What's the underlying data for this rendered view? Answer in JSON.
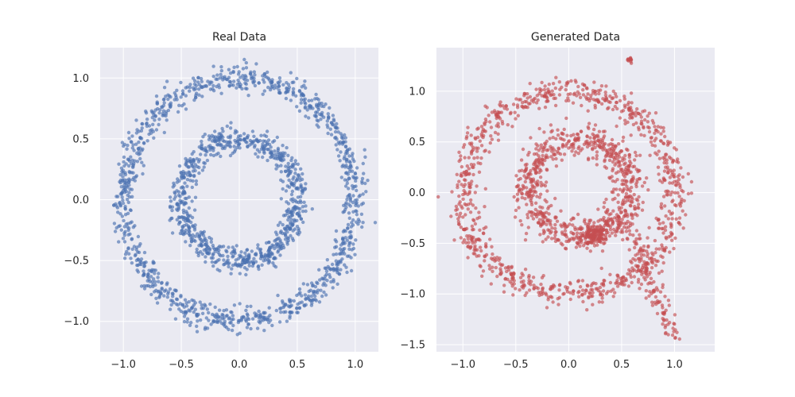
{
  "chart_data": [
    {
      "type": "scatter",
      "title": "Real Data",
      "xlabel": "",
      "ylabel": "",
      "xlim": [
        -1.2,
        1.2
      ],
      "ylim": [
        -1.25,
        1.25
      ],
      "xticks": [
        -1.0,
        -0.5,
        0.0,
        0.5,
        1.0
      ],
      "xtick_labels": [
        "−1.0",
        "−0.5",
        "0.0",
        "0.5",
        "1.0"
      ],
      "yticks": [
        -1.0,
        -0.5,
        0.0,
        0.5,
        1.0
      ],
      "ytick_labels": [
        "−1.0",
        "−0.5",
        "0.0",
        "0.5",
        "1.0"
      ],
      "grid": true,
      "color": "#4c72b0",
      "rings": [
        {
          "center": [
            0.0,
            0.0
          ],
          "radius": 1.0,
          "spread": 0.05
        },
        {
          "center": [
            0.0,
            0.0
          ],
          "radius": 0.5,
          "spread": 0.05
        }
      ]
    },
    {
      "type": "scatter",
      "title": "Generated Data",
      "xlabel": "",
      "ylabel": "",
      "xlim": [
        -1.25,
        1.38
      ],
      "ylim": [
        -1.57,
        1.43
      ],
      "xticks": [
        -1.0,
        -0.5,
        0.0,
        0.5,
        1.0
      ],
      "xtick_labels": [
        "−1.0",
        "−0.5",
        "0.0",
        "0.5",
        "1.0"
      ],
      "yticks": [
        -1.5,
        -1.0,
        -0.5,
        0.0,
        0.5,
        1.0
      ],
      "ytick_labels": [
        "−1.5",
        "−1.0",
        "−0.5",
        "0.0",
        "0.5",
        "1.0"
      ],
      "grid": true,
      "color": "#c44e52",
      "clusters": [
        {
          "shape": "ring",
          "center": [
            0.0,
            0.0
          ],
          "radius": 1.0,
          "spread": 0.07
        },
        {
          "shape": "ring",
          "center": [
            0.1,
            0.05
          ],
          "radius": 0.48,
          "spread": 0.08
        },
        {
          "shape": "blob",
          "center": [
            0.25,
            -0.42
          ],
          "spread": 0.06
        },
        {
          "shape": "blob",
          "center": [
            0.58,
            1.31
          ],
          "spread": 0.01
        },
        {
          "shape": "arc",
          "from": [
            0.55,
            -0.3
          ],
          "to": [
            1.0,
            -1.45
          ],
          "spread": 0.05
        }
      ]
    }
  ]
}
